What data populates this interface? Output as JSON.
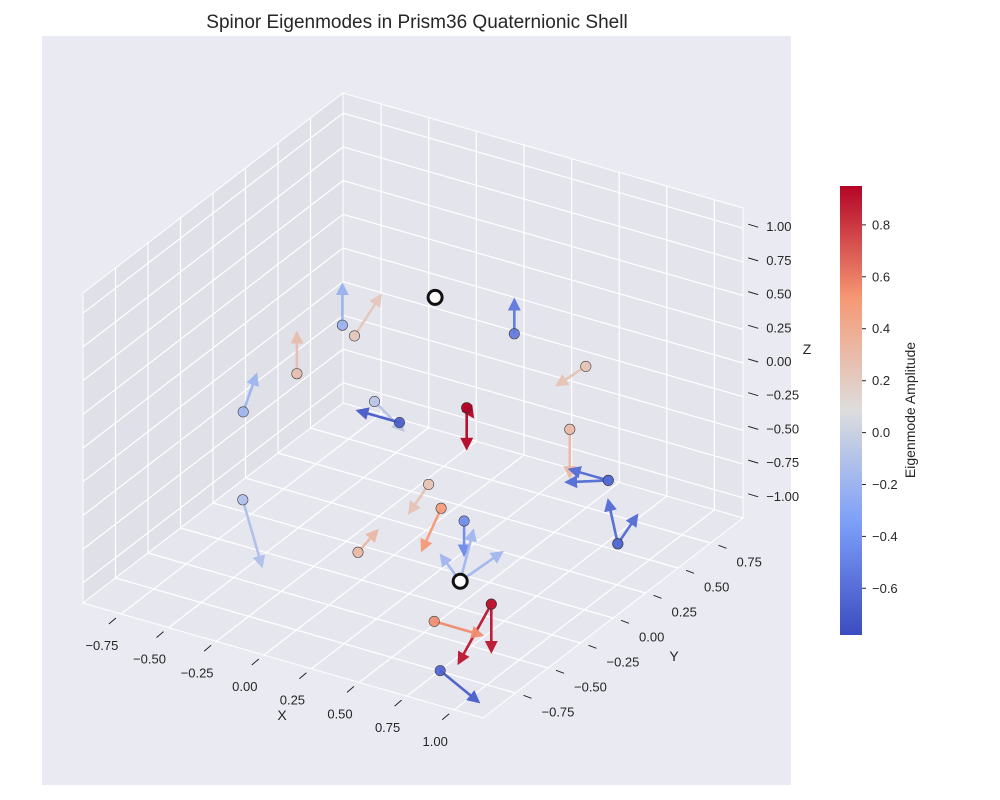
{
  "chart_data": {
    "type": "scatter",
    "title": "Spinor Eigenmodes in Prism36 Quaternionic Shell",
    "projection": "3d",
    "xlabel": "X",
    "ylabel": "Y",
    "zlabel": "Z",
    "grid": true,
    "xlim": [
      -0.95,
      1.15
    ],
    "ylim": [
      -1.0,
      1.0
    ],
    "zlim": [
      -1.15,
      1.15
    ],
    "x_ticks": [
      "−0.75",
      "−0.50",
      "−0.25",
      "0.00",
      "0.25",
      "0.50",
      "0.75",
      "1.00"
    ],
    "y_ticks": [
      "−0.75",
      "−0.50",
      "−0.25",
      "0.00",
      "0.25",
      "0.50",
      "0.75"
    ],
    "z_ticks": [
      "1.00",
      "0.75",
      "0.50",
      "0.25",
      "0.00",
      "−0.25",
      "−0.50",
      "−0.75",
      "−1.00"
    ],
    "colorbar": {
      "label": "Eigenmode Amplitude",
      "colormap": "coolwarm",
      "range": [
        -0.78,
        0.95
      ],
      "ticks": [
        "0.8",
        "0.6",
        "0.4",
        "0.2",
        "0.0",
        "−0.2",
        "−0.4",
        "−0.6"
      ],
      "tick_values": [
        0.8,
        0.6,
        0.4,
        0.2,
        0.0,
        -0.2,
        -0.4,
        -0.6
      ]
    },
    "points": [
      {
        "x": 0.7,
        "y": -0.1,
        "z": 0.85,
        "amp": -0.55,
        "vec": [
          0.0,
          0.0,
          0.25
        ]
      },
      {
        "x": 0.7,
        "y": 0.45,
        "z": 0.2,
        "amp": 0.25,
        "vec": [
          -0.15,
          0.0,
          -0.2
        ]
      },
      {
        "x": 0.45,
        "y": -0.1,
        "z": 0.2,
        "amp": 0.95,
        "vec": [
          0.1,
          -0.1,
          0.05
        ]
      },
      {
        "x": 0.45,
        "y": -0.1,
        "z": 0.2,
        "amp": 0.95,
        "vec": [
          0.0,
          0.0,
          -0.3
        ]
      },
      {
        "x": 0.65,
        "y": 0.4,
        "z": -0.25,
        "amp": 0.32,
        "vec": [
          0.0,
          0.0,
          -0.35
        ]
      },
      {
        "x": 0.75,
        "y": 0.55,
        "z": -0.7,
        "amp": -0.62,
        "vec": [
          -0.2,
          0.0,
          0.0
        ]
      },
      {
        "x": 0.75,
        "y": 0.55,
        "z": -0.7,
        "amp": -0.62,
        "vec": [
          -0.15,
          -0.1,
          0.0
        ]
      },
      {
        "x": 0.8,
        "y": 0.55,
        "z": -1.15,
        "amp": -0.62,
        "vec": [
          0.1,
          0.0,
          0.25
        ]
      },
      {
        "x": 0.8,
        "y": 0.55,
        "z": -1.15,
        "amp": -0.62,
        "vec": [
          -0.05,
          0.0,
          0.3
        ]
      },
      {
        "x": 0.3,
        "y": 0.1,
        "z": -0.85,
        "amp": -0.45,
        "vec": [
          0.0,
          0.0,
          -0.25
        ]
      },
      {
        "x": 0.75,
        "y": -0.35,
        "z": -0.95,
        "amp": 0.9,
        "vec": [
          0.0,
          -0.25,
          -0.25
        ]
      },
      {
        "x": 0.75,
        "y": -0.35,
        "z": -0.95,
        "amp": 0.9,
        "vec": [
          0.0,
          0.0,
          -0.35
        ]
      },
      {
        "x": 0.1,
        "y": -0.45,
        "z": 0.85,
        "amp": 0.22,
        "vec": [
          0.0,
          0.2,
          0.15
        ]
      },
      {
        "x": -0.1,
        "y": -0.25,
        "z": 0.7,
        "amp": -0.22,
        "vec": [
          0.0,
          0.0,
          0.3
        ]
      },
      {
        "x": -0.1,
        "y": -0.6,
        "z": 0.6,
        "amp": 0.28,
        "vec": [
          0.0,
          0.0,
          0.3
        ]
      },
      {
        "x": 0.0,
        "y": -0.15,
        "z": 0.1,
        "amp": -0.08,
        "vec": [
          0.15,
          0.0,
          -0.15
        ]
      },
      {
        "x": 0.2,
        "y": -0.25,
        "z": 0.1,
        "amp": -0.7,
        "vec": [
          -0.15,
          -0.1,
          0.1
        ]
      },
      {
        "x": -0.45,
        "y": -0.5,
        "z": 0.1,
        "amp": -0.2,
        "vec": [
          0.0,
          0.1,
          0.2
        ]
      },
      {
        "x": -0.35,
        "y": -0.65,
        "z": -0.4,
        "amp": -0.12,
        "vec": [
          0.1,
          0.0,
          -0.45
        ]
      },
      {
        "x": 0.25,
        "y": -0.1,
        "z": -0.45,
        "amp": 0.25,
        "vec": [
          -0.1,
          0.0,
          -0.25
        ]
      },
      {
        "x": 0.35,
        "y": -0.15,
        "z": -0.55,
        "amp": 0.5,
        "vec": [
          -0.1,
          0.0,
          -0.35
        ]
      },
      {
        "x": 0.05,
        "y": -0.35,
        "z": -0.85,
        "amp": 0.32,
        "vec": [
          0.1,
          0.0,
          0.2
        ]
      },
      {
        "x": 0.45,
        "y": -0.15,
        "z": -1.05,
        "amp": -0.18,
        "vec": [
          0.0,
          0.1,
          0.3
        ]
      },
      {
        "x": 0.45,
        "y": -0.15,
        "z": -1.05,
        "amp": -0.18,
        "vec": [
          0.15,
          0.1,
          0.2
        ]
      },
      {
        "x": 0.45,
        "y": -0.15,
        "z": -1.05,
        "amp": -0.18,
        "vec": [
          -0.1,
          0.0,
          0.15
        ]
      },
      {
        "x": 0.45,
        "y": -0.35,
        "z": -1.2,
        "amp": 0.55,
        "vec": [
          0.25,
          0.0,
          0.0
        ]
      },
      {
        "x": 0.55,
        "y": -0.45,
        "z": -1.45,
        "amp": -0.68,
        "vec": [
          0.2,
          0.0,
          -0.15
        ]
      }
    ],
    "highlight_points": [
      {
        "x": 0.25,
        "y": -0.05,
        "z": 0.9
      },
      {
        "x": 0.45,
        "y": -0.15,
        "z": -1.05
      }
    ]
  }
}
